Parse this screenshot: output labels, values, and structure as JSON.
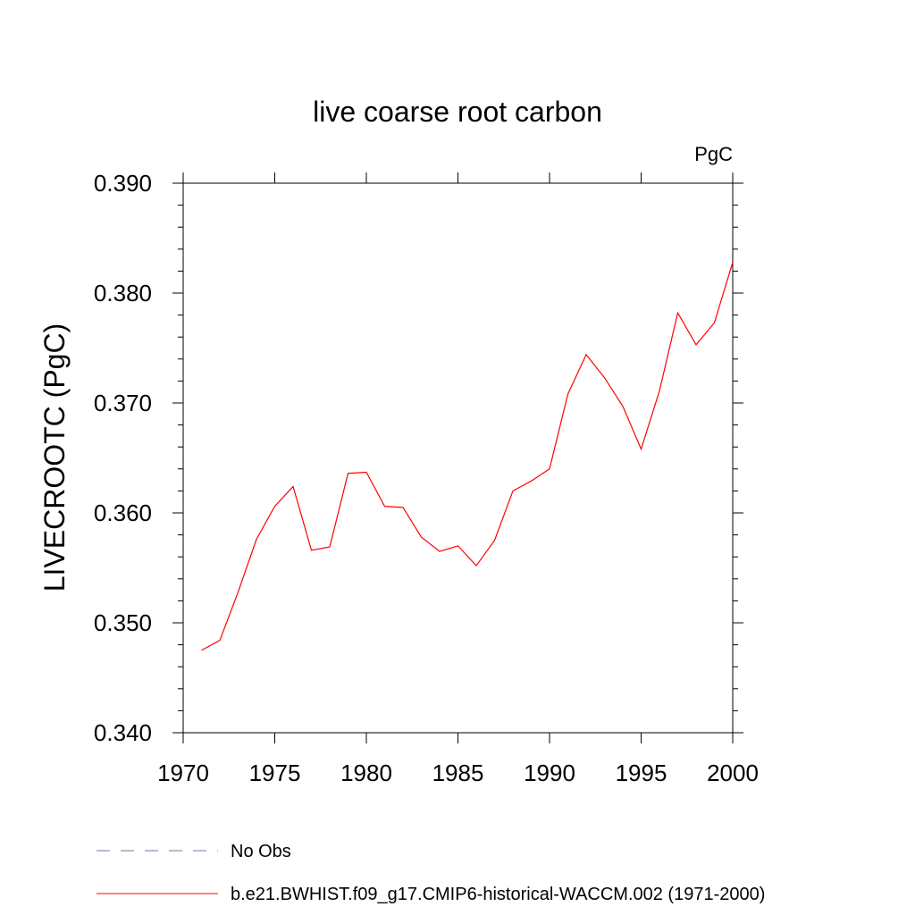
{
  "chart_data": {
    "type": "line",
    "title": "live coarse root carbon",
    "units_label": "PgC",
    "xlabel": "",
    "ylabel": "LIVECROOTC  (PgC)",
    "xlim": [
      1970,
      2000
    ],
    "ylim": [
      0.34,
      0.39
    ],
    "x_ticks": [
      1970,
      1975,
      1980,
      1985,
      1990,
      1995,
      2000
    ],
    "y_ticks": [
      "0.340",
      "0.350",
      "0.360",
      "0.370",
      "0.380",
      "0.390"
    ],
    "grid": false,
    "legend_position": "bottom-left",
    "series": [
      {
        "name": "b.e21.BWHIST.f09_g17.CMIP6-historical-WACCM.002 (1971-2000)",
        "color": "#ff0000",
        "dash": "solid",
        "x": [
          1971,
          1972,
          1973,
          1974,
          1975,
          1976,
          1977,
          1978,
          1979,
          1980,
          1981,
          1982,
          1983,
          1984,
          1985,
          1986,
          1987,
          1988,
          1989,
          1990,
          1991,
          1992,
          1993,
          1994,
          1995,
          1996,
          1997,
          1998,
          1999,
          2000
        ],
        "values": [
          0.3475,
          0.3484,
          0.3528,
          0.3576,
          0.3606,
          0.3624,
          0.3566,
          0.3569,
          0.3636,
          0.3637,
          0.3606,
          0.3605,
          0.3578,
          0.3565,
          0.357,
          0.3552,
          0.3575,
          0.362,
          0.3629,
          0.364,
          0.3708,
          0.3744,
          0.3723,
          0.3697,
          0.3658,
          0.3711,
          0.3782,
          0.3753,
          0.3773,
          0.3828
        ]
      }
    ],
    "legend": [
      {
        "label": "No Obs",
        "color": "#7a6fb0",
        "dash": "dashed"
      },
      {
        "label": "b.e21.BWHIST.f09_g17.CMIP6-historical-WACCM.002 (1971-2000)",
        "color": "#ff0000",
        "dash": "solid"
      }
    ]
  }
}
